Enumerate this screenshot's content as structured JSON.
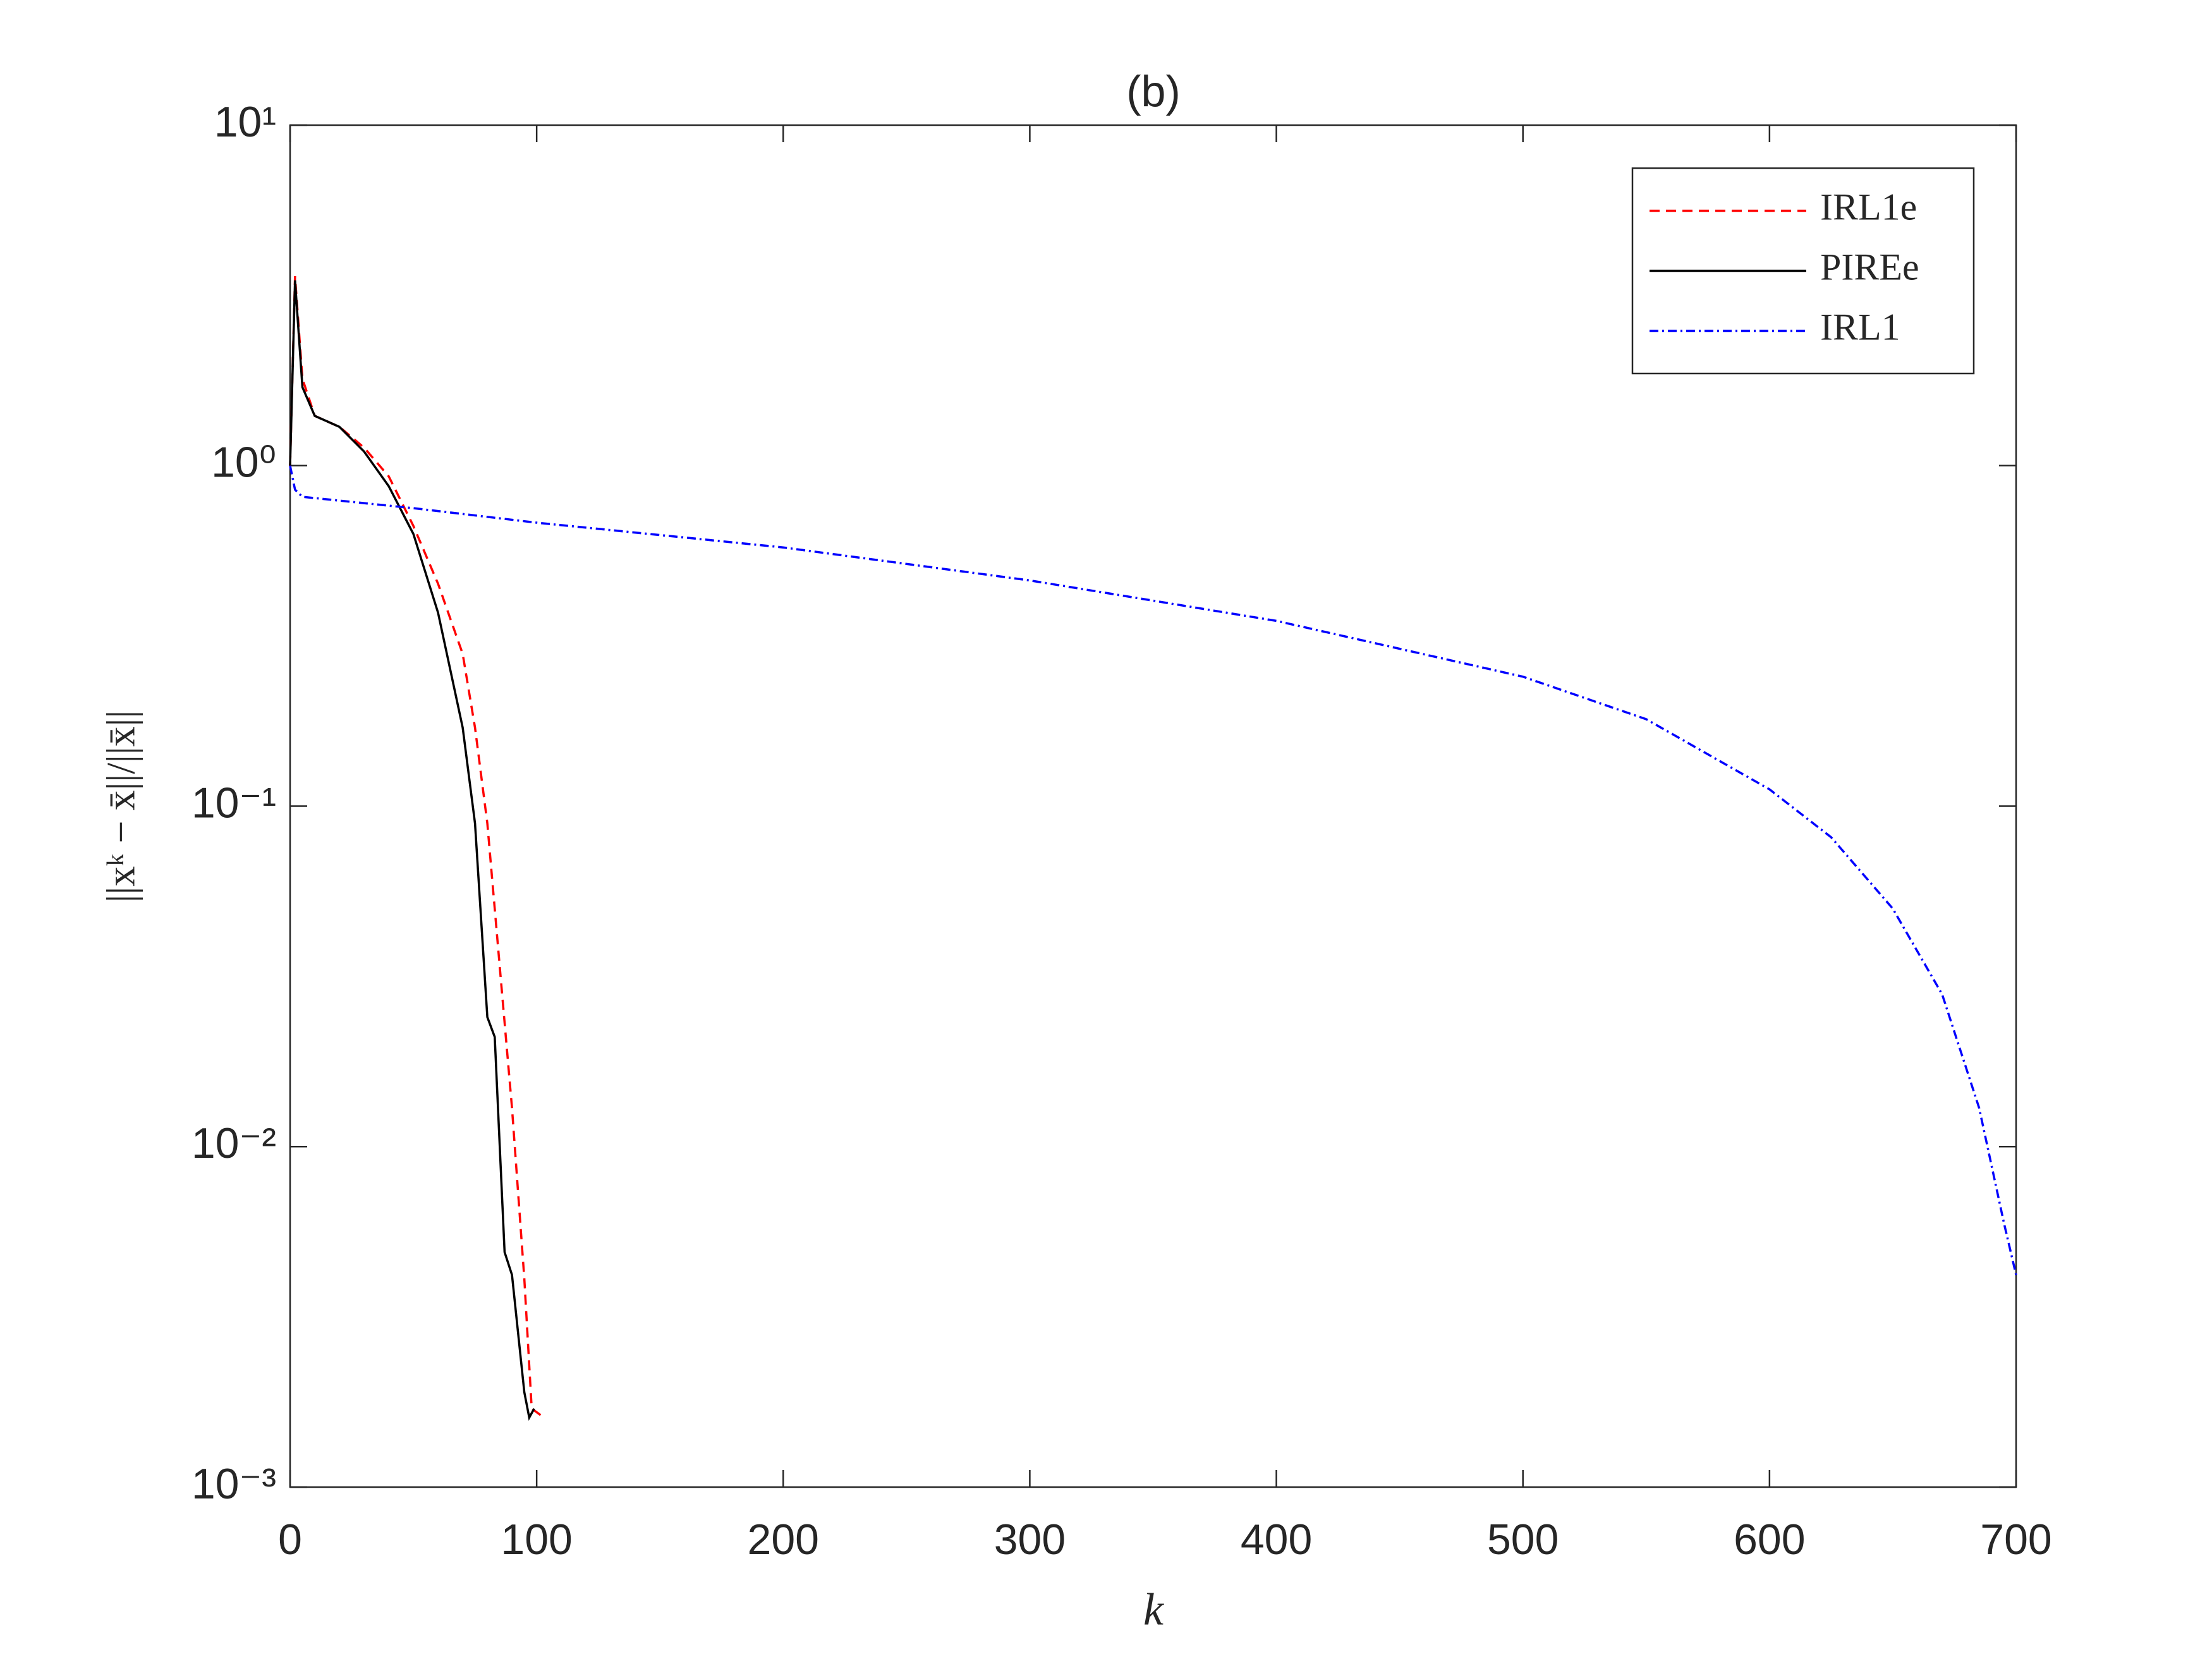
{
  "chart_data": {
    "type": "line",
    "title": "(b)",
    "xlabel": "k",
    "ylabel": "||xᵏ − x̄||/||x̄||",
    "yscale": "log",
    "xlim": [
      0,
      700
    ],
    "ylim": [
      0.001,
      10
    ],
    "xticks": [
      0,
      100,
      200,
      300,
      400,
      500,
      600,
      700
    ],
    "yticks": [
      {
        "value": 0.001,
        "label": "10⁻³"
      },
      {
        "value": 0.01,
        "label": "10⁻²"
      },
      {
        "value": 0.1,
        "label": "10⁻¹"
      },
      {
        "value": 1,
        "label": "10⁰"
      },
      {
        "value": 10,
        "label": "10¹"
      }
    ],
    "legend": "upper right",
    "series": [
      {
        "name": "IRL1e",
        "color": "#ff0000",
        "linestyle": "dashed",
        "x": [
          0,
          2,
          5,
          10,
          20,
          30,
          40,
          50,
          60,
          70,
          75,
          80,
          85,
          90,
          95,
          98,
          103
        ],
        "values": [
          1,
          3.6,
          1.8,
          1.4,
          1.3,
          1.13,
          0.93,
          0.665,
          0.45,
          0.28,
          0.17,
          0.089,
          0.034,
          0.013,
          0.0041,
          0.0017,
          0.0016
        ]
      },
      {
        "name": "PIREe",
        "color": "#000000",
        "linestyle": "solid",
        "x": [
          0,
          2,
          5,
          10,
          20,
          30,
          40,
          50,
          60,
          70,
          75,
          80,
          83,
          87,
          90,
          95,
          97,
          99
        ],
        "values": [
          1,
          3.5,
          1.7,
          1.4,
          1.3,
          1.1,
          0.87,
          0.63,
          0.37,
          0.17,
          0.089,
          0.024,
          0.021,
          0.0049,
          0.0042,
          0.0019,
          0.0016,
          0.0017
        ]
      },
      {
        "name": "IRL1",
        "color": "#0000ff",
        "linestyle": "dashdot",
        "x": [
          0,
          2,
          5,
          50,
          100,
          200,
          300,
          400,
          500,
          550,
          600,
          625,
          650,
          670,
          685,
          695,
          700
        ],
        "values": [
          1,
          0.85,
          0.81,
          0.75,
          0.68,
          0.575,
          0.46,
          0.35,
          0.24,
          0.18,
          0.112,
          0.081,
          0.05,
          0.028,
          0.013,
          0.006,
          0.0042
        ]
      }
    ]
  }
}
